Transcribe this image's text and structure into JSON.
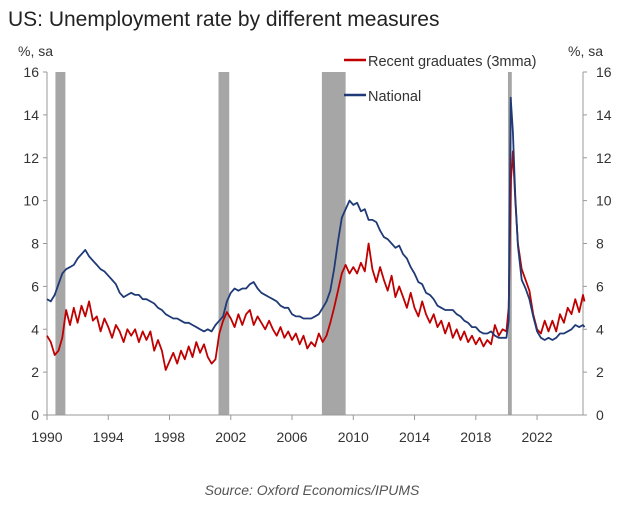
{
  "title": "US: Unemployment rate by different measures",
  "source": "Source: Oxford Economics/IPUMS",
  "chart_data": {
    "type": "line",
    "y_unit_left": "%, sa",
    "y_unit_right": "%, sa",
    "ylim": [
      0,
      16
    ],
    "yticks": [
      0,
      2,
      4,
      6,
      8,
      10,
      12,
      14,
      16
    ],
    "xlim": [
      1990,
      2025
    ],
    "xticks": [
      1990,
      1994,
      1998,
      2002,
      2006,
      2010,
      2014,
      2018,
      2022
    ],
    "legend_position": "top-right",
    "grid": false,
    "recessions": [
      [
        1990.55,
        1991.2
      ],
      [
        2001.2,
        2001.9
      ],
      [
        2007.95,
        2009.5
      ],
      [
        2020.1,
        2020.35
      ]
    ],
    "series": [
      {
        "name": "Recent graduates (3mma)",
        "color": "#c00000",
        "points": [
          [
            1990.0,
            3.7
          ],
          [
            1990.25,
            3.4
          ],
          [
            1990.5,
            2.8
          ],
          [
            1990.75,
            3.0
          ],
          [
            1991.0,
            3.6
          ],
          [
            1991.25,
            4.9
          ],
          [
            1991.5,
            4.2
          ],
          [
            1991.75,
            5.0
          ],
          [
            1992.0,
            4.3
          ],
          [
            1992.25,
            5.1
          ],
          [
            1992.5,
            4.6
          ],
          [
            1992.75,
            5.3
          ],
          [
            1993.0,
            4.4
          ],
          [
            1993.25,
            4.6
          ],
          [
            1993.5,
            3.9
          ],
          [
            1993.75,
            4.5
          ],
          [
            1994.0,
            4.1
          ],
          [
            1994.25,
            3.6
          ],
          [
            1994.5,
            4.2
          ],
          [
            1994.75,
            3.9
          ],
          [
            1995.0,
            3.4
          ],
          [
            1995.25,
            4.0
          ],
          [
            1995.5,
            3.7
          ],
          [
            1995.75,
            4.0
          ],
          [
            1996.0,
            3.4
          ],
          [
            1996.25,
            3.9
          ],
          [
            1996.5,
            3.5
          ],
          [
            1996.75,
            3.9
          ],
          [
            1997.0,
            3.0
          ],
          [
            1997.25,
            3.5
          ],
          [
            1997.5,
            3.0
          ],
          [
            1997.75,
            2.1
          ],
          [
            1998.0,
            2.5
          ],
          [
            1998.25,
            2.9
          ],
          [
            1998.5,
            2.4
          ],
          [
            1998.75,
            3.0
          ],
          [
            1999.0,
            2.6
          ],
          [
            1999.25,
            3.2
          ],
          [
            1999.5,
            2.7
          ],
          [
            1999.75,
            3.4
          ],
          [
            2000.0,
            2.9
          ],
          [
            2000.25,
            3.3
          ],
          [
            2000.5,
            2.7
          ],
          [
            2000.75,
            2.4
          ],
          [
            2001.0,
            2.6
          ],
          [
            2001.25,
            3.8
          ],
          [
            2001.5,
            4.4
          ],
          [
            2001.75,
            4.8
          ],
          [
            2002.0,
            4.5
          ],
          [
            2002.25,
            4.1
          ],
          [
            2002.5,
            4.7
          ],
          [
            2002.75,
            4.2
          ],
          [
            2003.0,
            4.7
          ],
          [
            2003.25,
            4.9
          ],
          [
            2003.5,
            4.2
          ],
          [
            2003.75,
            4.6
          ],
          [
            2004.0,
            4.3
          ],
          [
            2004.25,
            4.0
          ],
          [
            2004.5,
            4.4
          ],
          [
            2004.75,
            4.0
          ],
          [
            2005.0,
            3.7
          ],
          [
            2005.25,
            4.1
          ],
          [
            2005.5,
            3.6
          ],
          [
            2005.75,
            3.9
          ],
          [
            2006.0,
            3.5
          ],
          [
            2006.25,
            3.8
          ],
          [
            2006.5,
            3.3
          ],
          [
            2006.75,
            3.7
          ],
          [
            2007.0,
            3.1
          ],
          [
            2007.25,
            3.4
          ],
          [
            2007.5,
            3.2
          ],
          [
            2007.75,
            3.8
          ],
          [
            2008.0,
            3.4
          ],
          [
            2008.25,
            3.7
          ],
          [
            2008.5,
            4.3
          ],
          [
            2008.75,
            5.0
          ],
          [
            2009.0,
            5.8
          ],
          [
            2009.25,
            6.6
          ],
          [
            2009.5,
            7.0
          ],
          [
            2009.75,
            6.6
          ],
          [
            2010.0,
            6.9
          ],
          [
            2010.25,
            6.6
          ],
          [
            2010.5,
            7.1
          ],
          [
            2010.75,
            6.7
          ],
          [
            2011.0,
            8.0
          ],
          [
            2011.25,
            6.8
          ],
          [
            2011.5,
            6.2
          ],
          [
            2011.75,
            6.9
          ],
          [
            2012.0,
            6.3
          ],
          [
            2012.25,
            5.8
          ],
          [
            2012.5,
            6.5
          ],
          [
            2012.75,
            5.5
          ],
          [
            2013.0,
            6.0
          ],
          [
            2013.25,
            5.5
          ],
          [
            2013.5,
            5.0
          ],
          [
            2013.75,
            5.7
          ],
          [
            2014.0,
            5.0
          ],
          [
            2014.25,
            4.6
          ],
          [
            2014.5,
            5.3
          ],
          [
            2014.75,
            4.7
          ],
          [
            2015.0,
            4.3
          ],
          [
            2015.25,
            4.7
          ],
          [
            2015.5,
            4.1
          ],
          [
            2015.75,
            4.4
          ],
          [
            2016.0,
            3.8
          ],
          [
            2016.25,
            4.3
          ],
          [
            2016.5,
            3.6
          ],
          [
            2016.75,
            4.0
          ],
          [
            2017.0,
            3.5
          ],
          [
            2017.25,
            3.9
          ],
          [
            2017.5,
            3.4
          ],
          [
            2017.75,
            3.7
          ],
          [
            2018.0,
            3.3
          ],
          [
            2018.25,
            3.6
          ],
          [
            2018.5,
            3.2
          ],
          [
            2018.75,
            3.5
          ],
          [
            2019.0,
            3.3
          ],
          [
            2019.25,
            4.2
          ],
          [
            2019.5,
            3.7
          ],
          [
            2019.75,
            4.0
          ],
          [
            2020.0,
            3.9
          ],
          [
            2020.15,
            5.0
          ],
          [
            2020.3,
            11.0
          ],
          [
            2020.42,
            12.3
          ],
          [
            2020.58,
            10.0
          ],
          [
            2020.75,
            8.0
          ],
          [
            2021.0,
            6.8
          ],
          [
            2021.25,
            6.3
          ],
          [
            2021.5,
            5.8
          ],
          [
            2021.75,
            4.7
          ],
          [
            2022.0,
            4.0
          ],
          [
            2022.25,
            3.8
          ],
          [
            2022.5,
            4.4
          ],
          [
            2022.75,
            3.9
          ],
          [
            2023.0,
            4.4
          ],
          [
            2023.25,
            3.9
          ],
          [
            2023.5,
            4.7
          ],
          [
            2023.75,
            4.3
          ],
          [
            2024.0,
            5.0
          ],
          [
            2024.25,
            4.7
          ],
          [
            2024.5,
            5.4
          ],
          [
            2024.75,
            4.8
          ],
          [
            2025.0,
            5.6
          ],
          [
            2025.1,
            5.3
          ]
        ]
      },
      {
        "name": "National",
        "color": "#1f3a76",
        "points": [
          [
            1990.0,
            5.4
          ],
          [
            1990.25,
            5.3
          ],
          [
            1990.5,
            5.6
          ],
          [
            1990.75,
            6.1
          ],
          [
            1991.0,
            6.6
          ],
          [
            1991.25,
            6.8
          ],
          [
            1991.5,
            6.9
          ],
          [
            1991.75,
            7.0
          ],
          [
            1992.0,
            7.3
          ],
          [
            1992.25,
            7.5
          ],
          [
            1992.5,
            7.7
          ],
          [
            1992.75,
            7.4
          ],
          [
            1993.0,
            7.2
          ],
          [
            1993.25,
            7.0
          ],
          [
            1993.5,
            6.8
          ],
          [
            1993.75,
            6.7
          ],
          [
            1994.0,
            6.5
          ],
          [
            1994.25,
            6.3
          ],
          [
            1994.5,
            6.1
          ],
          [
            1994.75,
            5.7
          ],
          [
            1995.0,
            5.5
          ],
          [
            1995.25,
            5.6
          ],
          [
            1995.5,
            5.7
          ],
          [
            1995.75,
            5.6
          ],
          [
            1996.0,
            5.6
          ],
          [
            1996.25,
            5.4
          ],
          [
            1996.5,
            5.4
          ],
          [
            1996.75,
            5.3
          ],
          [
            1997.0,
            5.2
          ],
          [
            1997.25,
            5.0
          ],
          [
            1997.5,
            4.9
          ],
          [
            1997.75,
            4.7
          ],
          [
            1998.0,
            4.6
          ],
          [
            1998.25,
            4.5
          ],
          [
            1998.5,
            4.5
          ],
          [
            1998.75,
            4.4
          ],
          [
            1999.0,
            4.3
          ],
          [
            1999.25,
            4.3
          ],
          [
            1999.5,
            4.2
          ],
          [
            1999.75,
            4.1
          ],
          [
            2000.0,
            4.0
          ],
          [
            2000.25,
            3.9
          ],
          [
            2000.5,
            4.0
          ],
          [
            2000.75,
            3.9
          ],
          [
            2001.0,
            4.2
          ],
          [
            2001.25,
            4.4
          ],
          [
            2001.5,
            4.6
          ],
          [
            2001.75,
            5.3
          ],
          [
            2002.0,
            5.7
          ],
          [
            2002.25,
            5.9
          ],
          [
            2002.5,
            5.8
          ],
          [
            2002.75,
            5.9
          ],
          [
            2003.0,
            5.9
          ],
          [
            2003.25,
            6.1
          ],
          [
            2003.5,
            6.2
          ],
          [
            2003.75,
            5.9
          ],
          [
            2004.0,
            5.7
          ],
          [
            2004.25,
            5.6
          ],
          [
            2004.5,
            5.5
          ],
          [
            2004.75,
            5.4
          ],
          [
            2005.0,
            5.3
          ],
          [
            2005.25,
            5.1
          ],
          [
            2005.5,
            5.0
          ],
          [
            2005.75,
            5.0
          ],
          [
            2006.0,
            4.7
          ],
          [
            2006.25,
            4.6
          ],
          [
            2006.5,
            4.6
          ],
          [
            2006.75,
            4.5
          ],
          [
            2007.0,
            4.5
          ],
          [
            2007.25,
            4.5
          ],
          [
            2007.5,
            4.6
          ],
          [
            2007.75,
            4.7
          ],
          [
            2008.0,
            5.0
          ],
          [
            2008.25,
            5.3
          ],
          [
            2008.5,
            5.8
          ],
          [
            2008.75,
            6.8
          ],
          [
            2009.0,
            8.1
          ],
          [
            2009.25,
            9.2
          ],
          [
            2009.5,
            9.6
          ],
          [
            2009.75,
            10.0
          ],
          [
            2010.0,
            9.8
          ],
          [
            2010.25,
            9.9
          ],
          [
            2010.5,
            9.5
          ],
          [
            2010.75,
            9.6
          ],
          [
            2011.0,
            9.1
          ],
          [
            2011.25,
            9.1
          ],
          [
            2011.5,
            9.0
          ],
          [
            2011.75,
            8.6
          ],
          [
            2012.0,
            8.3
          ],
          [
            2012.25,
            8.2
          ],
          [
            2012.5,
            8.0
          ],
          [
            2012.75,
            7.8
          ],
          [
            2013.0,
            7.9
          ],
          [
            2013.25,
            7.5
          ],
          [
            2013.5,
            7.3
          ],
          [
            2013.75,
            6.9
          ],
          [
            2014.0,
            6.6
          ],
          [
            2014.25,
            6.2
          ],
          [
            2014.5,
            6.1
          ],
          [
            2014.75,
            5.7
          ],
          [
            2015.0,
            5.6
          ],
          [
            2015.25,
            5.4
          ],
          [
            2015.5,
            5.1
          ],
          [
            2015.75,
            5.0
          ],
          [
            2016.0,
            4.9
          ],
          [
            2016.25,
            4.9
          ],
          [
            2016.5,
            4.9
          ],
          [
            2016.75,
            4.7
          ],
          [
            2017.0,
            4.6
          ],
          [
            2017.25,
            4.4
          ],
          [
            2017.5,
            4.3
          ],
          [
            2017.75,
            4.1
          ],
          [
            2018.0,
            4.1
          ],
          [
            2018.25,
            3.9
          ],
          [
            2018.5,
            3.8
          ],
          [
            2018.75,
            3.8
          ],
          [
            2019.0,
            3.9
          ],
          [
            2019.25,
            3.7
          ],
          [
            2019.5,
            3.6
          ],
          [
            2019.75,
            3.6
          ],
          [
            2020.0,
            3.6
          ],
          [
            2020.15,
            4.4
          ],
          [
            2020.28,
            14.8
          ],
          [
            2020.42,
            13.2
          ],
          [
            2020.58,
            10.2
          ],
          [
            2020.75,
            7.9
          ],
          [
            2021.0,
            6.3
          ],
          [
            2021.25,
            5.9
          ],
          [
            2021.5,
            5.4
          ],
          [
            2021.75,
            4.6
          ],
          [
            2022.0,
            3.9
          ],
          [
            2022.25,
            3.6
          ],
          [
            2022.5,
            3.5
          ],
          [
            2022.75,
            3.6
          ],
          [
            2023.0,
            3.5
          ],
          [
            2023.25,
            3.6
          ],
          [
            2023.5,
            3.8
          ],
          [
            2023.75,
            3.8
          ],
          [
            2024.0,
            3.9
          ],
          [
            2024.25,
            4.0
          ],
          [
            2024.5,
            4.2
          ],
          [
            2024.75,
            4.1
          ],
          [
            2025.0,
            4.2
          ],
          [
            2025.1,
            4.1
          ]
        ]
      }
    ]
  }
}
